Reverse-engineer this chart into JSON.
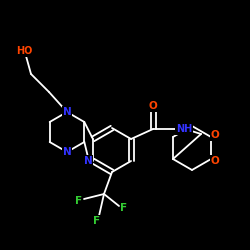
{
  "bg_color": "#000000",
  "bond_color": "#ffffff",
  "atom_colors": {
    "N": "#3333ff",
    "O": "#ff4400",
    "F": "#33cc33",
    "C": "#ffffff"
  },
  "figsize": [
    2.5,
    2.5
  ],
  "dpi": 100
}
